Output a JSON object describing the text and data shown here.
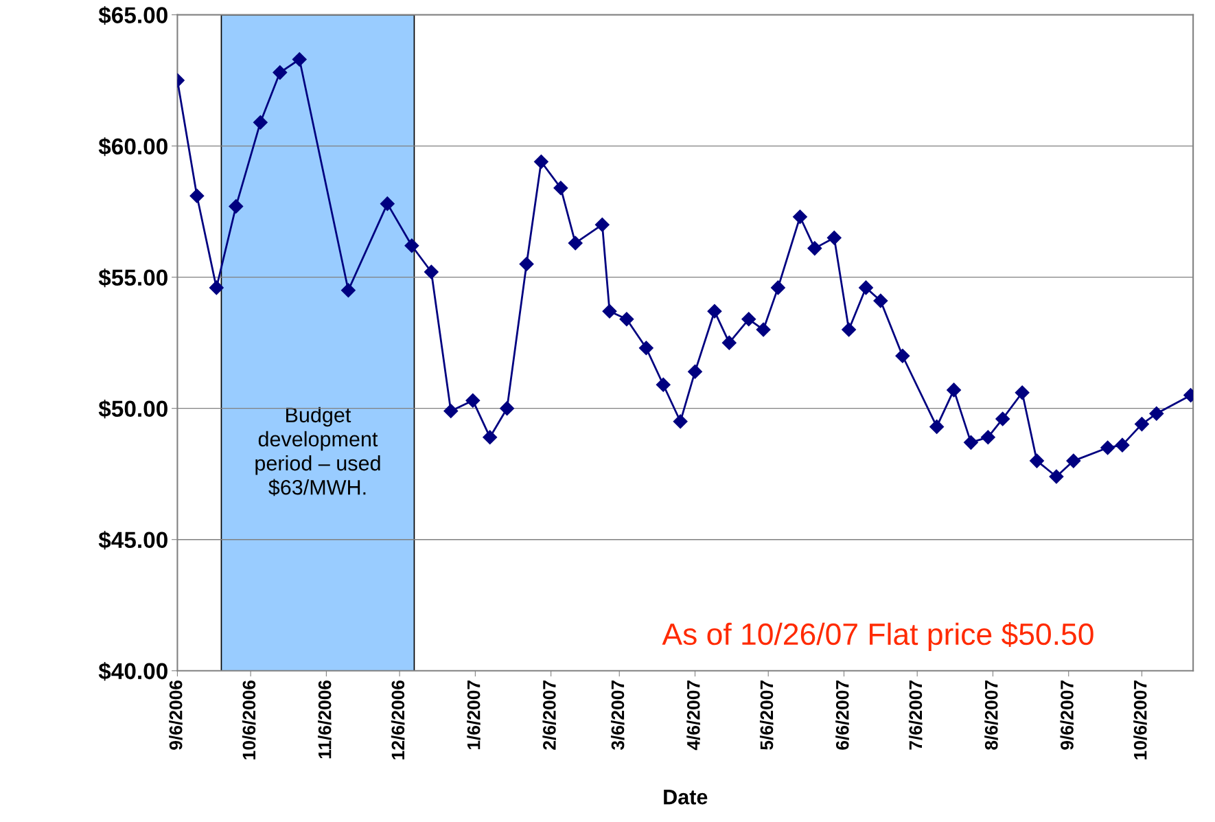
{
  "chart_data": {
    "type": "line",
    "xlabel": "Date",
    "x": [
      "2006-09-06",
      "2006-09-14",
      "2006-09-22",
      "2006-09-30",
      "2006-10-10",
      "2006-10-18",
      "2006-10-26",
      "2006-11-15",
      "2006-12-01",
      "2006-12-11",
      "2006-12-19",
      "2006-12-27",
      "2007-01-05",
      "2007-01-12",
      "2007-01-19",
      "2007-01-27",
      "2007-02-02",
      "2007-02-10",
      "2007-02-16",
      "2007-02-27",
      "2007-03-02",
      "2007-03-09",
      "2007-03-17",
      "2007-03-24",
      "2007-03-31",
      "2007-04-06",
      "2007-04-14",
      "2007-04-20",
      "2007-04-28",
      "2007-05-04",
      "2007-05-10",
      "2007-05-19",
      "2007-05-25",
      "2007-06-02",
      "2007-06-08",
      "2007-06-15",
      "2007-06-21",
      "2007-06-30",
      "2007-07-14",
      "2007-07-21",
      "2007-07-28",
      "2007-08-04",
      "2007-08-10",
      "2007-08-18",
      "2007-08-24",
      "2007-09-01",
      "2007-09-08",
      "2007-09-22",
      "2007-09-28",
      "2007-10-06",
      "2007-10-12",
      "2007-10-26"
    ],
    "series": [
      {
        "color": "#000080",
        "values": [
          62.5,
          58.1,
          54.6,
          57.7,
          60.9,
          62.8,
          63.3,
          54.5,
          57.8,
          56.2,
          55.2,
          49.9,
          50.3,
          48.9,
          50.0,
          55.5,
          59.4,
          58.4,
          56.3,
          57.0,
          53.7,
          53.4,
          52.3,
          50.9,
          49.5,
          51.4,
          53.7,
          52.5,
          53.4,
          53.0,
          54.6,
          57.3,
          56.1,
          56.5,
          53.0,
          54.6,
          54.1,
          52.0,
          49.3,
          50.7,
          48.7,
          48.9,
          49.6,
          50.6,
          48.0,
          47.4,
          48.0,
          48.5,
          48.6,
          49.4,
          49.8,
          50.5
        ]
      }
    ],
    "xlim": [
      "2006-09-06",
      "2007-10-27"
    ],
    "xticks": [
      {
        "value": "2006-09-06",
        "label": "9/6/2006"
      },
      {
        "value": "2006-10-06",
        "label": "10/6/2006"
      },
      {
        "value": "2006-11-06",
        "label": "11/6/2006"
      },
      {
        "value": "2006-12-06",
        "label": "12/6/2006"
      },
      {
        "value": "2007-01-06",
        "label": "1/6/2007"
      },
      {
        "value": "2007-02-06",
        "label": "2/6/2007"
      },
      {
        "value": "2007-03-06",
        "label": "3/6/2007"
      },
      {
        "value": "2007-04-06",
        "label": "4/6/2007"
      },
      {
        "value": "2007-05-06",
        "label": "5/6/2007"
      },
      {
        "value": "2007-06-06",
        "label": "6/6/2007"
      },
      {
        "value": "2007-07-06",
        "label": "7/6/2007"
      },
      {
        "value": "2007-08-06",
        "label": "8/6/2007"
      },
      {
        "value": "2007-09-06",
        "label": "9/6/2007"
      },
      {
        "value": "2007-10-06",
        "label": "10/6/2007"
      }
    ],
    "ylim": [
      40,
      65
    ],
    "yticks": [
      {
        "value": 40,
        "label": "$40.00"
      },
      {
        "value": 45,
        "label": "$45.00"
      },
      {
        "value": 50,
        "label": "$50.00"
      },
      {
        "value": 55,
        "label": "$55.00"
      },
      {
        "value": 60,
        "label": "$60.00"
      },
      {
        "value": 65,
        "label": "$65.00"
      }
    ],
    "grid": "y",
    "marker": "diamond",
    "line_style": "solid",
    "legend": false,
    "bands": [
      {
        "axis": "x",
        "from": "2006-09-24",
        "to": "2006-12-12",
        "label": "Budget development period – used $63/MWH.",
        "color": "#99ccff"
      }
    ],
    "annotations": [
      "As of 10/26/07 Flat price $50.50"
    ]
  }
}
